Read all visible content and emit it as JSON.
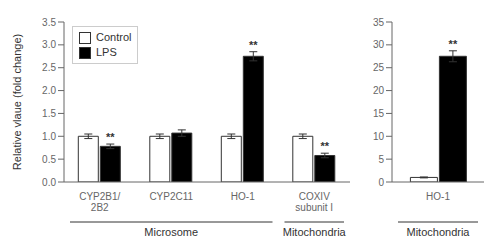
{
  "chart_data": [
    {
      "type": "bar",
      "categories": [
        "CYP2B1/\n2B2",
        "CYP2C11",
        "HO-1",
        "COXIV\nsubunit I"
      ],
      "series": [
        {
          "name": "Control",
          "color": "white",
          "values": [
            1.0,
            1.0,
            1.0,
            1.0
          ],
          "errors": [
            0.05,
            0.05,
            0.05,
            0.05
          ]
        },
        {
          "name": "LPS",
          "color": "black",
          "values": [
            0.78,
            1.07,
            2.75,
            0.58
          ],
          "errors": [
            0.05,
            0.07,
            0.1,
            0.05
          ]
        }
      ],
      "ylabel": "Relative vlaue (fold change)",
      "ylim": [
        0,
        3.5
      ],
      "yticks": [
        {
          "value": 0,
          "label": "0.0"
        },
        0.5,
        {
          "value": 1,
          "label": "1.0"
        },
        1.5,
        {
          "value": 2,
          "label": "2.0"
        },
        2.5,
        {
          "value": 3,
          "label": "3.0"
        },
        3.5
      ],
      "legend": "upper left",
      "annotations": [
        {
          "text": "**",
          "category": "CYP2B1/\n2B2",
          "series": "LPS"
        },
        {
          "text": "**",
          "category": "HO-1",
          "series": "LPS"
        },
        {
          "text": "**",
          "category": "COXIV\nsubunit I",
          "series": "LPS"
        },
        {
          "text": "Microsome",
          "categories": [
            "CYP2B1/\n2B2",
            "CYP2C11",
            "HO-1"
          ]
        },
        {
          "text": "Mitochondria",
          "categories": [
            "COXIV\nsubunit I"
          ]
        }
      ]
    },
    {
      "type": "bar",
      "categories": [
        "HO-1"
      ],
      "series": [
        {
          "name": "Control",
          "color": "white",
          "values": [
            1.0
          ],
          "errors": [
            0.1
          ]
        },
        {
          "name": "LPS",
          "color": "black",
          "values": [
            27.5
          ],
          "errors": [
            1.2
          ]
        }
      ],
      "ylim": [
        0,
        35
      ],
      "yticks": [
        0,
        5,
        10,
        15,
        20,
        25,
        30,
        35
      ],
      "annotations": [
        {
          "text": "**",
          "category": "HO-1",
          "series": "LPS"
        },
        {
          "text": "Mitochondria",
          "categories": [
            "HO-1"
          ]
        }
      ]
    }
  ]
}
